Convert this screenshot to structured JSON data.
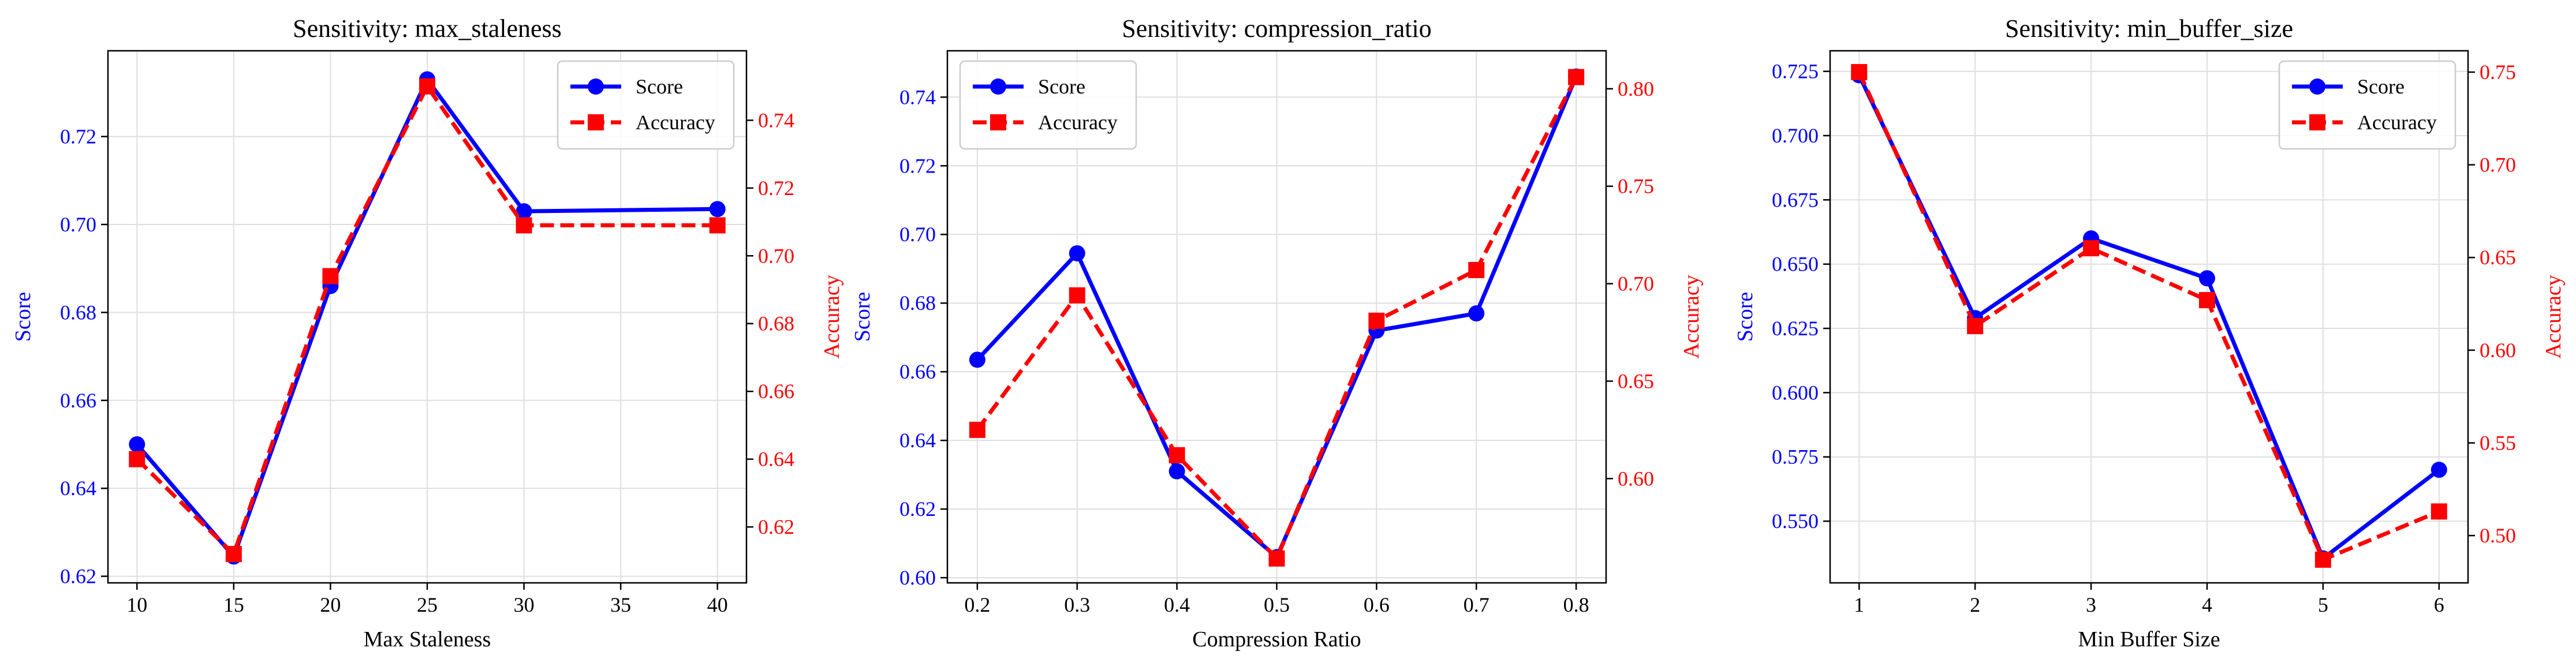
{
  "chart_data": [
    {
      "type": "line",
      "title": "Sensitivity: max_staleness",
      "xlabel": "Max Staleness",
      "ylabel_left": "Score",
      "ylabel_right": "Accuracy",
      "x": [
        10,
        15,
        20,
        25,
        30,
        40
      ],
      "xlim": [
        8.5,
        41.5
      ],
      "xticks": [
        10,
        15,
        20,
        25,
        30,
        35,
        40
      ],
      "ylim_left": [
        0.6185,
        0.7395
      ],
      "yticks_left": [
        0.62,
        0.64,
        0.66,
        0.68,
        0.7,
        0.72
      ],
      "ylim_right": [
        0.6035,
        0.7605
      ],
      "yticks_right": [
        0.62,
        0.64,
        0.66,
        0.68,
        0.7,
        0.72,
        0.74
      ],
      "legend_position": "upper right",
      "grid": true,
      "series": [
        {
          "name": "Score",
          "axis": "left",
          "color": "#0000ff",
          "linestyle": "solid",
          "marker": "circle",
          "values": [
            0.65,
            0.6245,
            0.686,
            0.733,
            0.703,
            0.7035
          ]
        },
        {
          "name": "Accuracy",
          "axis": "right",
          "color": "#ff0000",
          "linestyle": "dashed",
          "marker": "square",
          "values": [
            0.64,
            0.612,
            0.694,
            0.75,
            0.709,
            0.709
          ]
        }
      ]
    },
    {
      "type": "line",
      "title": "Sensitivity: compression_ratio",
      "xlabel": "Compression Ratio",
      "ylabel_left": "Score",
      "ylabel_right": "Accuracy",
      "x": [
        0.2,
        0.3,
        0.4,
        0.5,
        0.6,
        0.7,
        0.8
      ],
      "xlim": [
        0.17,
        0.83
      ],
      "xticks": [
        0.2,
        0.3,
        0.4,
        0.5,
        0.6,
        0.7,
        0.8
      ],
      "ylim_left": [
        0.5985,
        0.7535
      ],
      "yticks_left": [
        0.6,
        0.62,
        0.64,
        0.66,
        0.68,
        0.7,
        0.72,
        0.74
      ],
      "ylim_right": [
        0.5465,
        0.8195
      ],
      "yticks_right": [
        0.6,
        0.65,
        0.7,
        0.75,
        0.8
      ],
      "legend_position": "upper left",
      "grid": true,
      "series": [
        {
          "name": "Score",
          "axis": "left",
          "color": "#0000ff",
          "linestyle": "solid",
          "marker": "circle",
          "values": [
            0.6635,
            0.6945,
            0.631,
            0.606,
            0.672,
            0.677,
            0.746
          ]
        },
        {
          "name": "Accuracy",
          "axis": "right",
          "color": "#ff0000",
          "linestyle": "dashed",
          "marker": "square",
          "values": [
            0.625,
            0.694,
            0.612,
            0.559,
            0.681,
            0.707,
            0.806
          ]
        }
      ]
    },
    {
      "type": "line",
      "title": "Sensitivity: min_buffer_size",
      "xlabel": "Min Buffer Size",
      "ylabel_left": "Score",
      "ylabel_right": "Accuracy",
      "x": [
        1,
        2,
        3,
        4,
        5,
        6
      ],
      "xlim": [
        0.75,
        6.25
      ],
      "xticks": [
        1,
        2,
        3,
        4,
        5,
        6
      ],
      "ylim_left": [
        0.526,
        0.733
      ],
      "yticks_left": [
        0.55,
        0.575,
        0.6,
        0.625,
        0.65,
        0.675,
        0.7,
        0.725
      ],
      "ylim_right": [
        0.4745,
        0.7615
      ],
      "yticks_right": [
        0.5,
        0.55,
        0.6,
        0.65,
        0.7,
        0.75
      ],
      "legend_position": "upper right",
      "grid": true,
      "series": [
        {
          "name": "Score",
          "axis": "left",
          "color": "#0000ff",
          "linestyle": "solid",
          "marker": "circle",
          "values": [
            0.7235,
            0.629,
            0.66,
            0.6445,
            0.5355,
            0.57
          ]
        },
        {
          "name": "Accuracy",
          "axis": "right",
          "color": "#ff0000",
          "linestyle": "dashed",
          "marker": "square",
          "values": [
            0.75,
            0.613,
            0.655,
            0.627,
            0.487,
            0.513
          ]
        }
      ]
    }
  ]
}
